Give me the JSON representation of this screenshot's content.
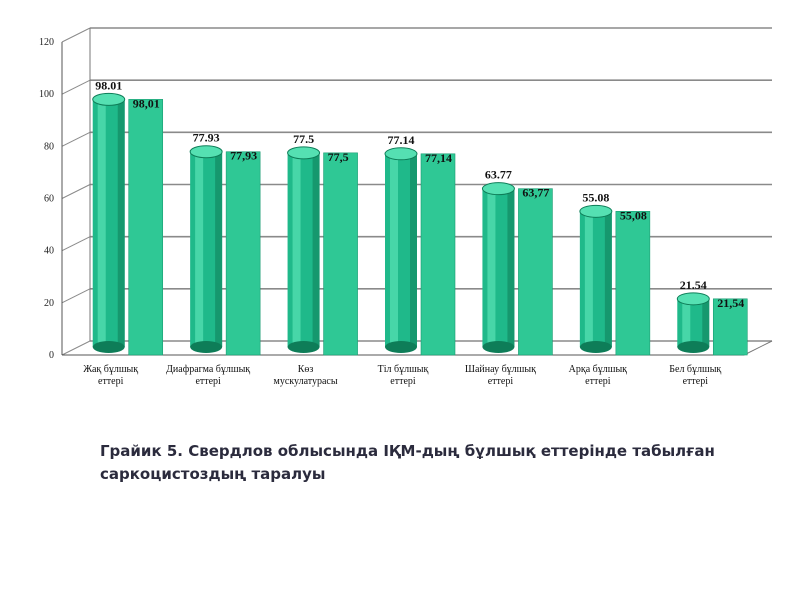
{
  "caption": "Грайик 5. Свердлов облысында ІҚМ-дың бұлшық еттерінде табылған саркоцистоздың таралуы",
  "colors": {
    "bar_front": "#1fb98a",
    "bar_light": "#55e0b2",
    "bar_dark": "#0e7d58",
    "box": "#2fc895",
    "grid": "#8a8a8a"
  },
  "chart_data": {
    "type": "bar",
    "ylim": [
      0,
      120
    ],
    "y_ticks": [
      0,
      20,
      40,
      60,
      80,
      100,
      120
    ],
    "grid": true,
    "categories": [
      "Жақ бұлшық еттері",
      "Диафрагма бұлшық еттері",
      "Көз мускулатурасы",
      "Тіл бұлшық еттері",
      "Шайнау бұлшық еттері",
      "Арқа бұлшық еттері",
      "Бел бұлшық еттері"
    ],
    "series": [
      {
        "values": [
          98.01,
          77.93,
          77.5,
          77.14,
          63.77,
          55.08,
          21.54
        ]
      },
      {
        "values": [
          98.01,
          77.93,
          77.5,
          77.14,
          63.77,
          55.08,
          21.54
        ]
      }
    ],
    "value_labels": [
      [
        "98.01",
        "77.93",
        "77.5",
        "77.14",
        "63.77",
        "55.08",
        "21.54"
      ],
      [
        "98,01",
        "77,93",
        "77,5",
        "77,14",
        "63,77",
        "55,08",
        "21,54"
      ]
    ]
  }
}
